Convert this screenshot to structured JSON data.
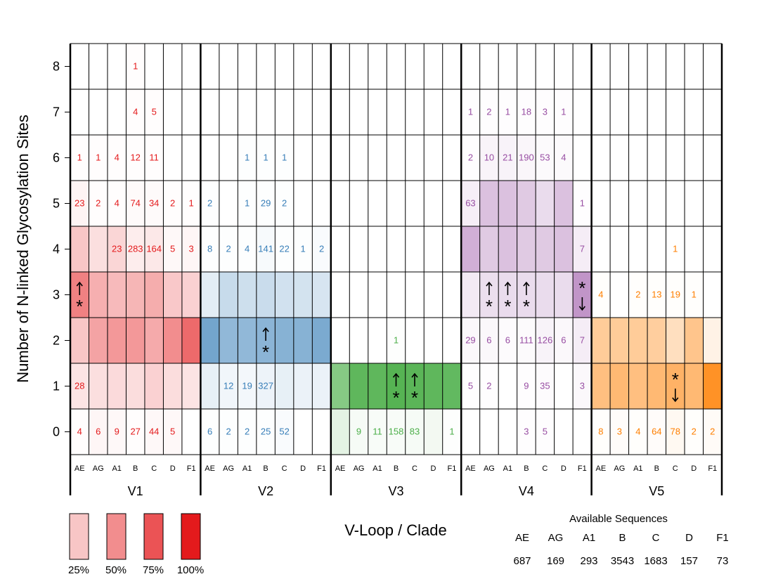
{
  "chart_data": {
    "type": "heatmap",
    "ylabel": "Number of N-linked Glycosylation Sites",
    "xlabel": "V-Loop / Clade",
    "loops": [
      "V1",
      "V2",
      "V3",
      "V4",
      "V5"
    ],
    "clades": [
      "AE",
      "AG",
      "A1",
      "B",
      "C",
      "D",
      "F1"
    ],
    "y_values": [
      0,
      1,
      2,
      3,
      4,
      5,
      6,
      7,
      8
    ],
    "loop_colors": {
      "V1": "#e41a1c",
      "V2": "#377eb8",
      "V3": "#4daf4a",
      "V4": "#984ea3",
      "V5": "#ff7f00"
    },
    "counts": {
      "V1": {
        "AE": [
          4,
          28,
          null,
          null,
          null,
          23,
          1,
          null,
          null
        ],
        "AG": [
          6,
          null,
          null,
          null,
          null,
          2,
          1,
          null,
          null
        ],
        "A1": [
          9,
          null,
          null,
          null,
          23,
          4,
          4,
          null,
          null
        ],
        "B": [
          27,
          null,
          null,
          null,
          283,
          74,
          12,
          4,
          1
        ],
        "C": [
          44,
          null,
          null,
          null,
          164,
          34,
          11,
          5,
          null
        ],
        "D": [
          5,
          null,
          null,
          null,
          5,
          2,
          null,
          null,
          null
        ],
        "F1": [
          null,
          null,
          null,
          null,
          3,
          1,
          null,
          null,
          null
        ]
      },
      "V2": {
        "AE": [
          6,
          null,
          null,
          null,
          8,
          2,
          null,
          null,
          null
        ],
        "AG": [
          2,
          12,
          null,
          null,
          2,
          null,
          null,
          null,
          null
        ],
        "A1": [
          2,
          19,
          null,
          null,
          4,
          1,
          1,
          null,
          null
        ],
        "B": [
          25,
          327,
          null,
          null,
          141,
          29,
          1,
          null,
          null
        ],
        "C": [
          52,
          null,
          null,
          null,
          22,
          2,
          1,
          null,
          null
        ],
        "D": [
          null,
          null,
          null,
          null,
          1,
          null,
          null,
          null,
          null
        ],
        "F1": [
          null,
          null,
          null,
          null,
          2,
          null,
          null,
          null,
          null
        ]
      },
      "V3": {
        "AE": [
          null,
          null,
          null,
          null,
          null,
          null,
          null,
          null,
          null
        ],
        "AG": [
          9,
          null,
          null,
          null,
          null,
          null,
          null,
          null,
          null
        ],
        "A1": [
          11,
          null,
          null,
          null,
          null,
          null,
          null,
          null,
          null
        ],
        "B": [
          158,
          null,
          1,
          null,
          null,
          null,
          null,
          null,
          null
        ],
        "C": [
          83,
          null,
          null,
          null,
          null,
          null,
          null,
          null,
          null
        ],
        "D": [
          null,
          null,
          null,
          null,
          null,
          null,
          null,
          null,
          null
        ],
        "F1": [
          1,
          null,
          null,
          null,
          null,
          null,
          null,
          null,
          null
        ]
      },
      "V4": {
        "AE": [
          null,
          5,
          29,
          null,
          null,
          63,
          2,
          1,
          null
        ],
        "AG": [
          null,
          2,
          6,
          null,
          null,
          null,
          10,
          2,
          null
        ],
        "A1": [
          null,
          null,
          6,
          null,
          null,
          null,
          21,
          1,
          null
        ],
        "B": [
          3,
          9,
          111,
          null,
          null,
          null,
          190,
          18,
          null
        ],
        "C": [
          5,
          35,
          126,
          null,
          null,
          null,
          53,
          3,
          null
        ],
        "D": [
          null,
          null,
          6,
          null,
          null,
          null,
          4,
          1,
          null
        ],
        "F1": [
          null,
          3,
          7,
          null,
          7,
          1,
          null,
          null,
          null
        ]
      },
      "V5": {
        "AE": [
          8,
          null,
          null,
          4,
          null,
          null,
          null,
          null,
          null
        ],
        "AG": [
          3,
          null,
          null,
          null,
          null,
          null,
          null,
          null,
          null
        ],
        "A1": [
          4,
          null,
          null,
          2,
          null,
          null,
          null,
          null,
          null
        ],
        "B": [
          64,
          null,
          null,
          13,
          null,
          null,
          null,
          null,
          null
        ],
        "C": [
          78,
          null,
          null,
          19,
          1,
          null,
          null,
          null,
          null
        ],
        "D": [
          2,
          null,
          null,
          1,
          null,
          null,
          null,
          null,
          null
        ],
        "F1": [
          2,
          null,
          null,
          null,
          null,
          null,
          null,
          null,
          null
        ]
      }
    },
    "percent_fill": {
      "V1": {
        "AE": [
          1,
          12,
          25,
          55,
          25,
          5,
          1,
          0,
          0
        ],
        "AG": [
          4,
          14,
          40,
          35,
          14,
          1,
          1,
          0,
          0
        ],
        "A1": [
          3,
          16,
          45,
          30,
          18,
          1,
          1,
          0,
          0
        ],
        "B": [
          1,
          15,
          45,
          32,
          8,
          2,
          1,
          1,
          1
        ],
        "C": [
          3,
          20,
          37,
          36,
          10,
          2,
          1,
          1,
          0
        ],
        "D": [
          3,
          15,
          50,
          24,
          3,
          1,
          0,
          0,
          0
        ],
        "F1": [
          0,
          12,
          65,
          20,
          4,
          1,
          0,
          0,
          0
        ]
      },
      "V2": {
        "AE": [
          1,
          12,
          70,
          14,
          1,
          1,
          0,
          0,
          0
        ],
        "AG": [
          1,
          7,
          55,
          28,
          1,
          0,
          0,
          0,
          0
        ],
        "A1": [
          1,
          6,
          55,
          25,
          1,
          1,
          1,
          0,
          0
        ],
        "B": [
          1,
          9,
          58,
          27,
          4,
          1,
          1,
          0,
          0
        ],
        "C": [
          3,
          12,
          60,
          23,
          1,
          1,
          1,
          0,
          0
        ],
        "D": [
          0,
          10,
          60,
          22,
          1,
          0,
          0,
          0,
          0
        ],
        "F1": [
          0,
          10,
          66,
          20,
          3,
          0,
          0,
          0,
          0
        ]
      },
      "V3": {
        "AE": [
          15,
          68,
          0,
          0,
          0,
          0,
          0,
          0,
          0
        ],
        "AG": [
          5,
          90,
          0,
          0,
          0,
          0,
          0,
          0,
          0
        ],
        "A1": [
          4,
          90,
          0,
          0,
          0,
          0,
          0,
          0,
          0
        ],
        "B": [
          4,
          95,
          1,
          0,
          0,
          0,
          0,
          0,
          0
        ],
        "C": [
          5,
          92,
          0,
          0,
          0,
          0,
          0,
          0,
          0
        ],
        "D": [
          7,
          90,
          0,
          0,
          0,
          0,
          0,
          0,
          0
        ],
        "F1": [
          1,
          88,
          0,
          0,
          0,
          0,
          0,
          0,
          0
        ]
      },
      "V4": {
        "AE": [
          0,
          1,
          4,
          12,
          45,
          9,
          1,
          1,
          0
        ],
        "AG": [
          0,
          1,
          4,
          18,
          30,
          35,
          6,
          1,
          0
        ],
        "A1": [
          0,
          0,
          2,
          20,
          35,
          35,
          7,
          1,
          0
        ],
        "B": [
          1,
          1,
          3,
          20,
          30,
          30,
          5,
          1,
          0
        ],
        "C": [
          1,
          2,
          7,
          20,
          30,
          20,
          3,
          1,
          0
        ],
        "D": [
          0,
          0,
          4,
          20,
          35,
          35,
          3,
          1,
          0
        ],
        "F1": [
          0,
          4,
          10,
          60,
          10,
          1,
          0,
          0,
          0
        ]
      },
      "V5": {
        "AE": [
          1,
          50,
          40,
          1,
          0,
          0,
          0,
          0,
          0
        ],
        "AG": [
          2,
          55,
          40,
          0,
          0,
          0,
          0,
          0,
          0
        ],
        "A1": [
          1,
          50,
          40,
          1,
          0,
          0,
          0,
          0,
          0
        ],
        "B": [
          2,
          55,
          38,
          1,
          0,
          0,
          0,
          0,
          0
        ],
        "C": [
          5,
          60,
          25,
          1,
          0,
          0,
          0,
          0,
          0
        ],
        "D": [
          1,
          55,
          45,
          1,
          0,
          0,
          0,
          0,
          0
        ],
        "F1": [
          3,
          85,
          10,
          0,
          0,
          0,
          0,
          0,
          0
        ]
      }
    },
    "markers": [
      {
        "loop": "V1",
        "clade": "AE",
        "y": 3,
        "arrow": "up",
        "star": "below"
      },
      {
        "loop": "V2",
        "clade": "B",
        "y": 2,
        "arrow": "up",
        "star": "below"
      },
      {
        "loop": "V3",
        "clade": "B",
        "y": 1,
        "arrow": "up",
        "star": "below"
      },
      {
        "loop": "V3",
        "clade": "C",
        "y": 1,
        "arrow": "up",
        "star": "below"
      },
      {
        "loop": "V4",
        "clade": "AG",
        "y": 3,
        "arrow": "up",
        "star": "below"
      },
      {
        "loop": "V4",
        "clade": "A1",
        "y": 3,
        "arrow": "up",
        "star": "below"
      },
      {
        "loop": "V4",
        "clade": "B",
        "y": 3,
        "arrow": "up",
        "star": "below"
      },
      {
        "loop": "V4",
        "clade": "F1",
        "y": 3,
        "arrow": "down",
        "star": "above"
      },
      {
        "loop": "V5",
        "clade": "C",
        "y": 1,
        "arrow": "down",
        "star": "above"
      }
    ],
    "color_legend": {
      "labels": [
        "25%",
        "50%",
        "75%",
        "100%"
      ],
      "levels": [
        25,
        50,
        75,
        100
      ]
    },
    "available_sequences": {
      "title": "Available Sequences",
      "clades": [
        "AE",
        "AG",
        "A1",
        "B",
        "C",
        "D",
        "F1"
      ],
      "counts": [
        "687",
        "169",
        "293",
        "3543",
        "1683",
        "157",
        "73"
      ]
    }
  }
}
